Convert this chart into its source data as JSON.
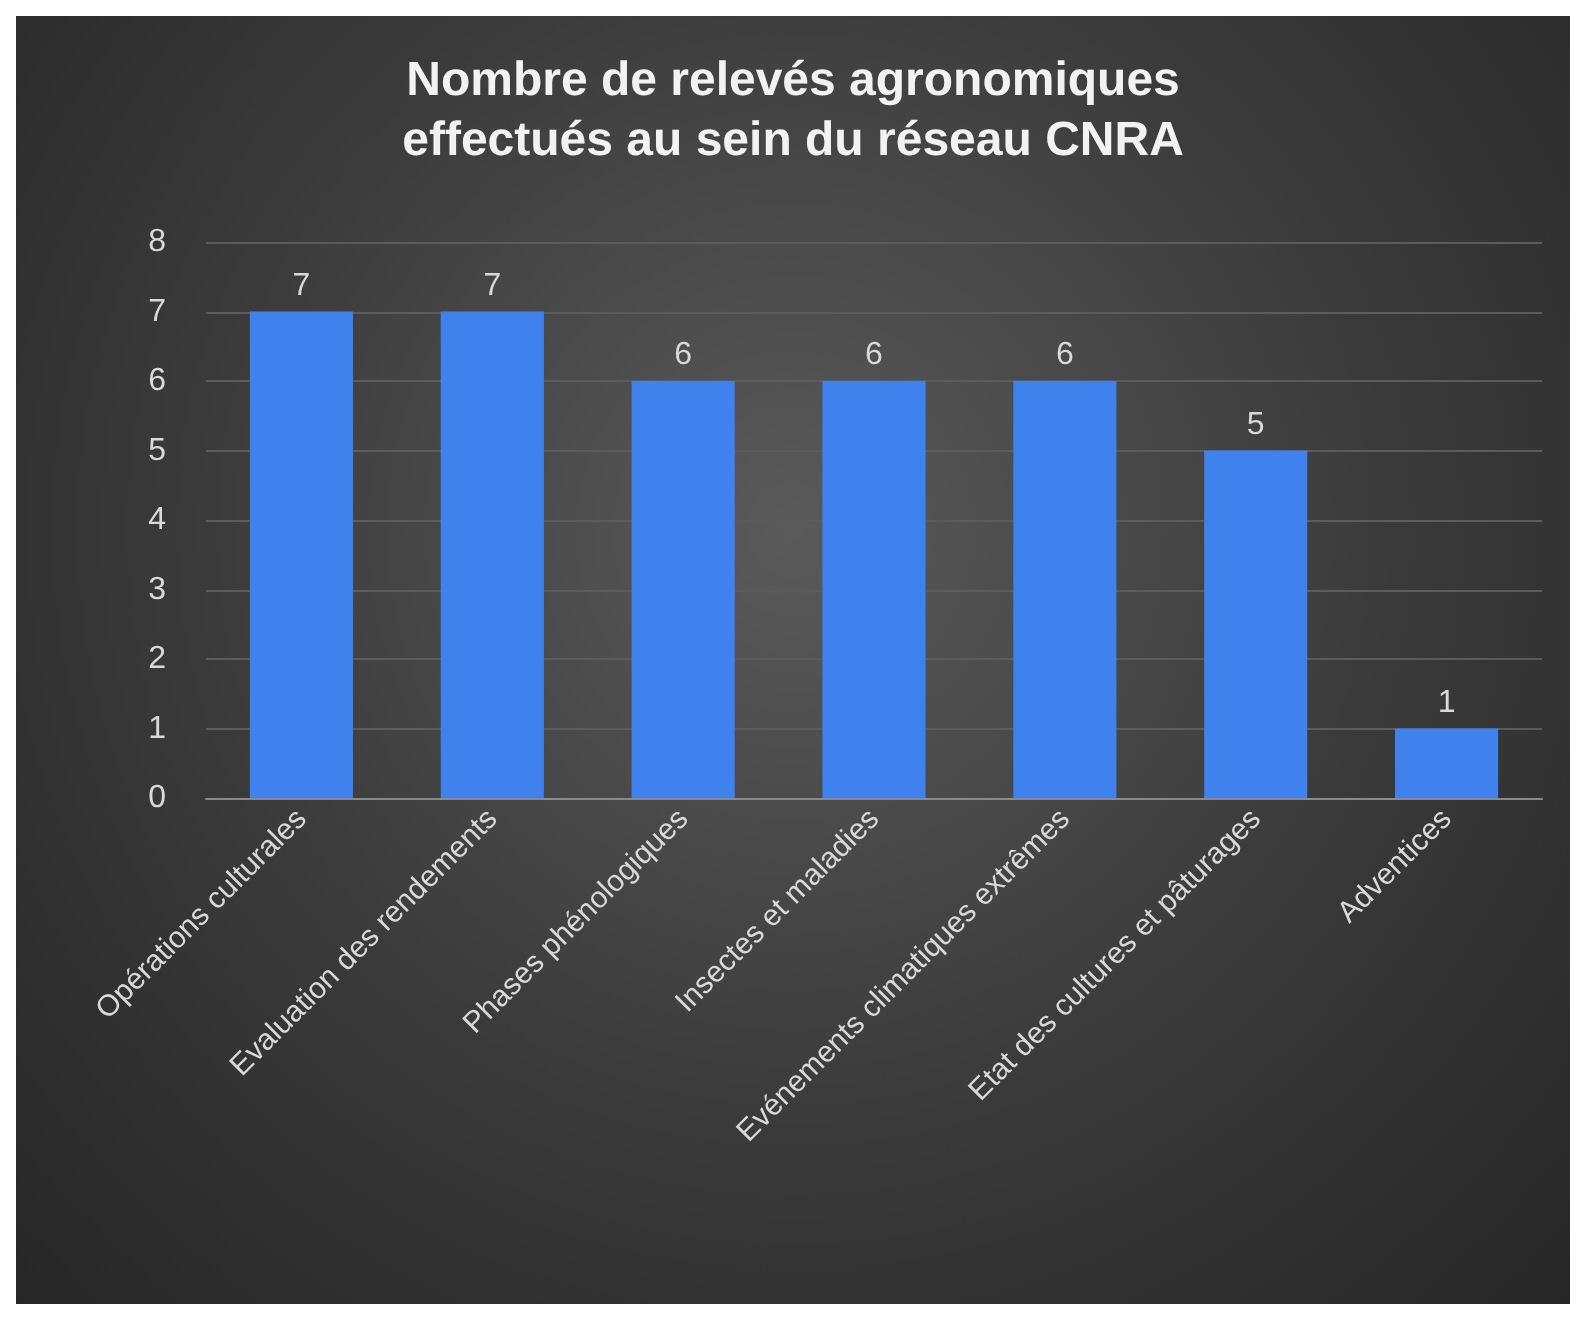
{
  "chart_data": {
    "type": "bar",
    "title": "Nombre de relevés agronomiques\neffectués au sein du réseau CNRA",
    "categories": [
      "Opérations culturales",
      "Evaluation des rendements",
      "Phases phénologiques",
      "Insectes et maladies",
      "Evénements climatiques extrêmes",
      "Etat des cultures et pâturages",
      "Adventices"
    ],
    "values": [
      7,
      7,
      6,
      6,
      6,
      5,
      1
    ],
    "color": "#3f82ee",
    "ylim": [
      0,
      8
    ],
    "yticks": [
      0,
      1,
      2,
      3,
      4,
      5,
      6,
      7,
      8
    ],
    "grid": "y",
    "data_labels": true
  }
}
